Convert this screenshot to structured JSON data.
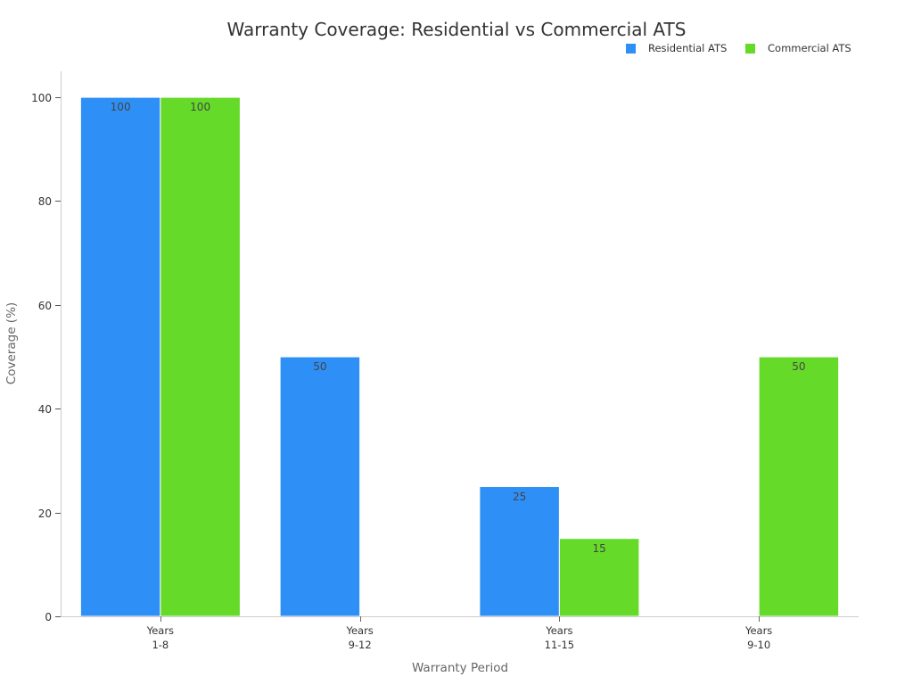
{
  "chart_data": {
    "type": "bar",
    "title": "Warranty Coverage: Residential vs Commercial ATS",
    "xlabel": "Warranty Period",
    "ylabel": "Coverage (%)",
    "categories": [
      "Years\n1-8",
      "Years\n9-12",
      "Years\n11-15",
      "Years\n9-10"
    ],
    "series": [
      {
        "name": "Residential ATS",
        "values": [
          100,
          50,
          25,
          null
        ],
        "color": "#2e8ff6"
      },
      {
        "name": "Commercial ATS",
        "values": [
          100,
          null,
          15,
          50
        ],
        "color": "#66da28"
      }
    ],
    "ylim": [
      0,
      105
    ],
    "yticks": [
      0,
      20,
      40,
      60,
      80,
      100
    ],
    "data_labels": true,
    "grid": false,
    "legend": "top-right"
  }
}
